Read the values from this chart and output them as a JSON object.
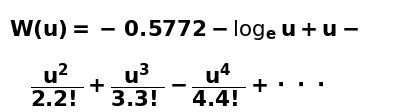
{
  "line1": "$\\mathbf{W(u) = -\\,0.5772 - \\log_e u + u -}$",
  "line2": "$\\mathbf{\\dfrac{u^2}{2.2!} + \\dfrac{u^3}{3.3!} - \\dfrac{u^4}{4.4!} + \\cdot\\,\\cdot\\,\\cdot}$",
  "background_color": "#ffffff",
  "text_color": "#000000",
  "fontsize_line1": 15.5,
  "fontsize_line2": 15.5,
  "fig_width": 4.04,
  "fig_height": 1.13
}
